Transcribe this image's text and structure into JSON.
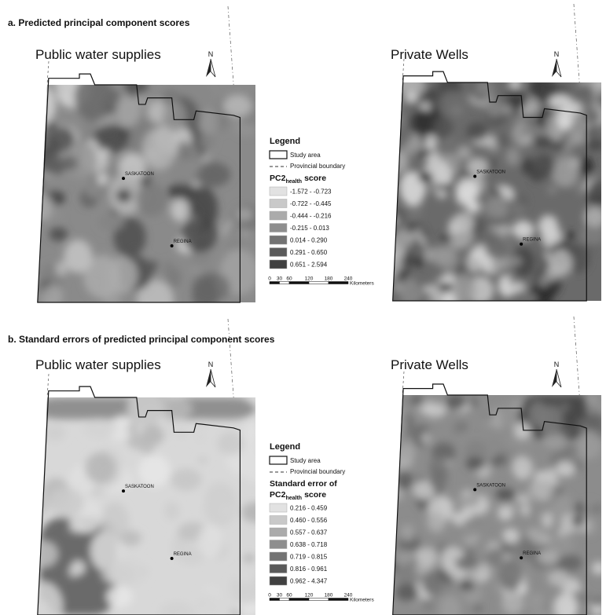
{
  "panels": [
    {
      "title": "a. Predicted principal component scores",
      "maps": [
        {
          "title": "Public water supplies",
          "north": "N",
          "cities": [
            "SASKATOON",
            "REGINA"
          ]
        },
        {
          "title": "Private Wells",
          "north": "N",
          "cities": [
            "SASKATOON",
            "REGINA"
          ]
        }
      ],
      "legend": {
        "title": "Legend",
        "study_area": "Study area",
        "provincial_boundary": "Provincial boundary",
        "heading": {
          "var": "PC2",
          "sub": "health",
          "suffix": "score"
        },
        "classes": [
          "-1.572 - -0.723",
          "-0.722 - -0.445",
          "-0.444 - -0.216",
          "-0.215 - 0.013",
          "0.014 - 0.290",
          "0.291 - 0.650",
          "0.651 - 2.594"
        ],
        "scale": {
          "ticks": [
            0,
            30,
            60,
            120,
            180,
            240
          ],
          "unit": "Kilometers"
        }
      }
    },
    {
      "title": "b. Standard errors of predicted principal component scores",
      "maps": [
        {
          "title": "Public water supplies",
          "north": "N",
          "cities": [
            "SASKATOON",
            "REGINA"
          ]
        },
        {
          "title": "Private Wells",
          "north": "N",
          "cities": [
            "SASKATOON",
            "REGINA"
          ]
        }
      ],
      "legend": {
        "title": "Legend",
        "study_area": "Study area",
        "provincial_boundary": "Provincial boundary",
        "heading": {
          "lines": [
            "Standard error of"
          ],
          "var": "PC2",
          "sub": "health",
          "suffix": "score"
        },
        "classes": [
          "0.216 - 0.459",
          "0.460 - 0.556",
          "0.557 - 0.637",
          "0.638 - 0.718",
          "0.719 - 0.815",
          "0.816 - 0.961",
          "0.962 - 4.347"
        ],
        "scale": {
          "ticks": [
            0,
            30,
            60,
            120,
            180,
            240
          ],
          "unit": "Kilometers"
        }
      }
    }
  ]
}
